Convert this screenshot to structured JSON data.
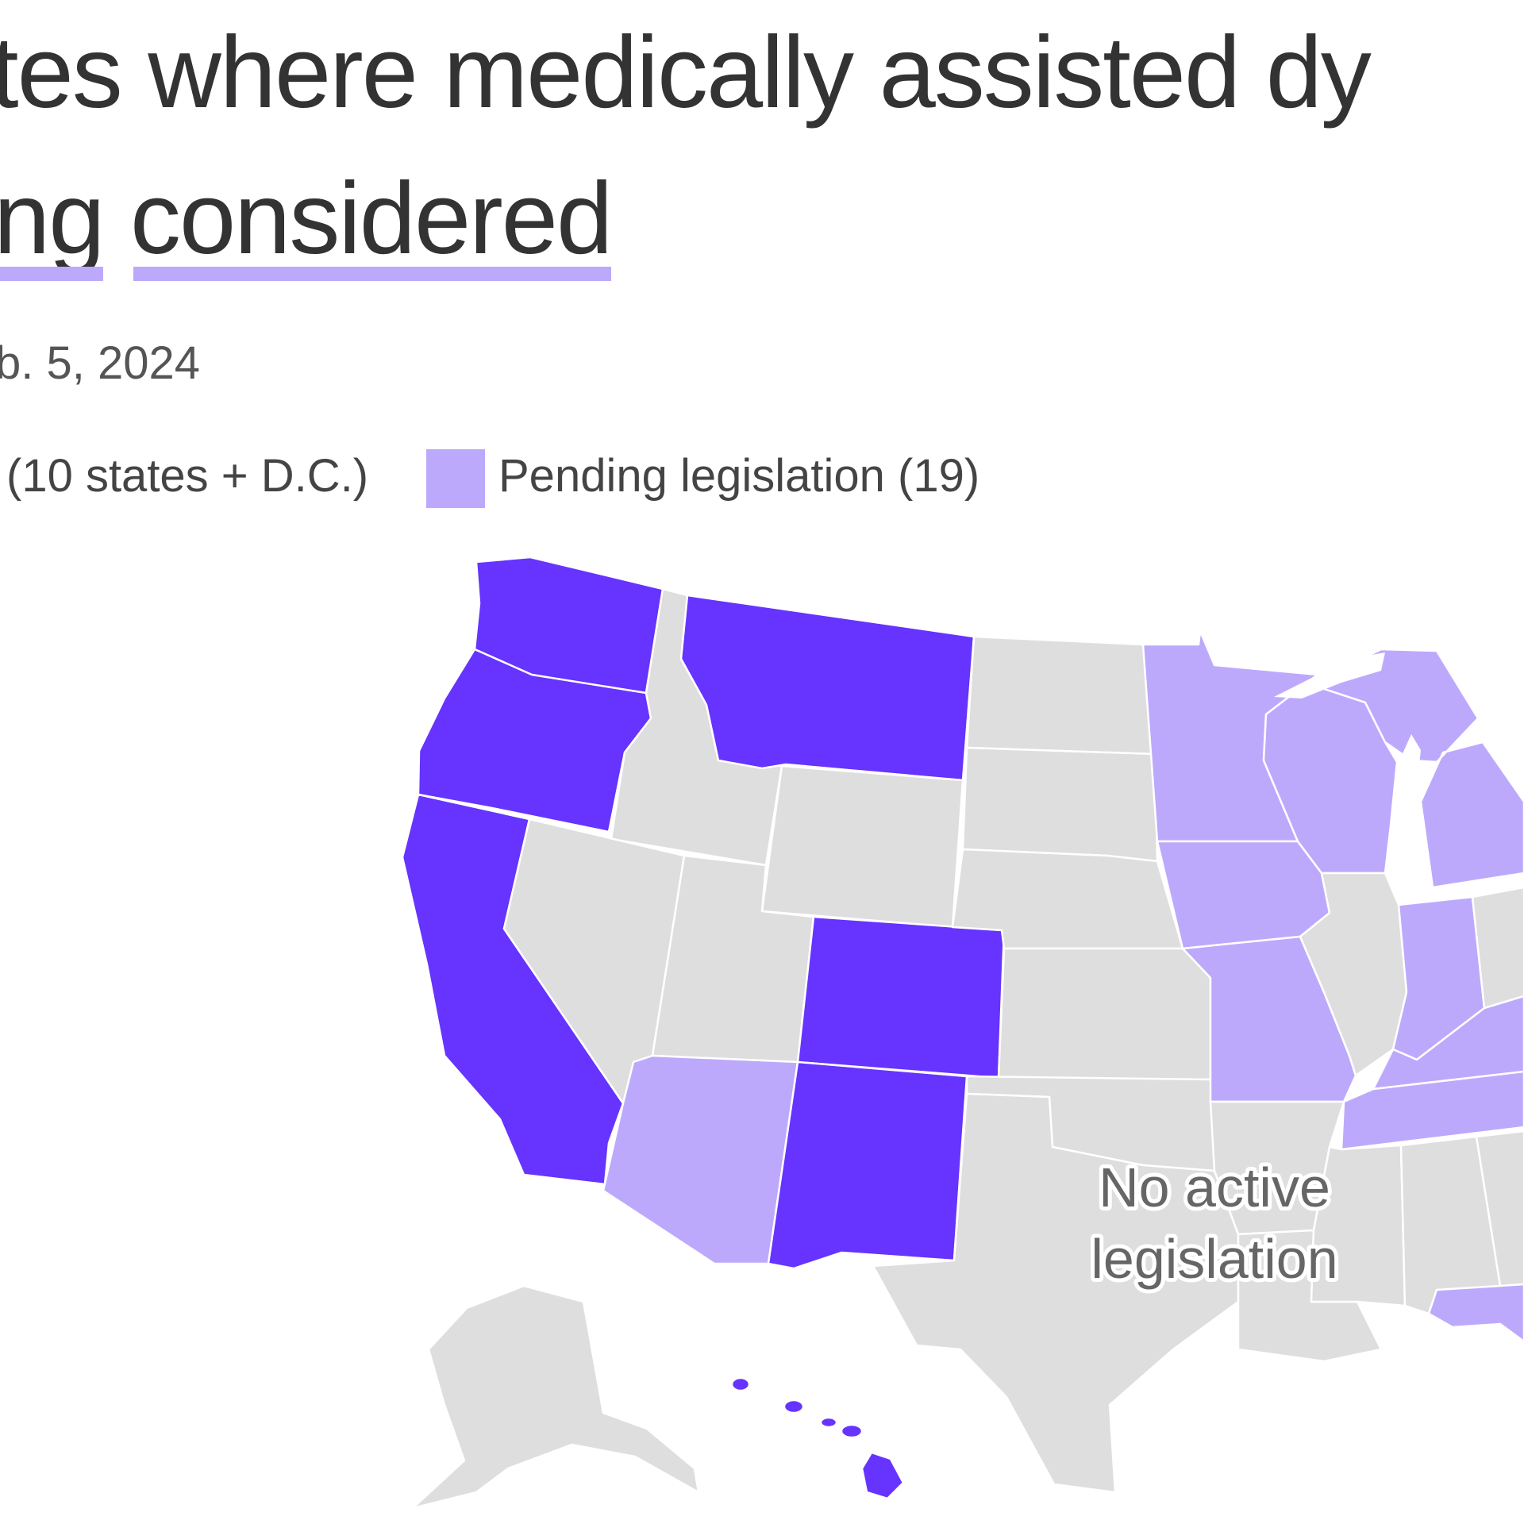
{
  "title": {
    "line1": "tes where medically assisted dy",
    "line2_prefix": "ng",
    "line2_word": "considered"
  },
  "subtitle": "b. 5, 2024",
  "colors": {
    "legal": "#6633ff",
    "pending": "#bda9fc",
    "none": "#dedede",
    "border": "#ffffff",
    "text": "#333333"
  },
  "legend": [
    {
      "label": "(10 states + D.C.)",
      "status": "legal"
    },
    {
      "label": "Pending legislation (19)",
      "status": "pending"
    }
  ],
  "map_label": {
    "line1": "No active",
    "line2": "legislation"
  },
  "states": [
    {
      "name": "Washington",
      "status": "legal"
    },
    {
      "name": "Oregon",
      "status": "legal"
    },
    {
      "name": "California",
      "status": "legal"
    },
    {
      "name": "Montana",
      "status": "legal"
    },
    {
      "name": "Colorado",
      "status": "legal"
    },
    {
      "name": "New Mexico",
      "status": "legal"
    },
    {
      "name": "Hawaii",
      "status": "legal"
    },
    {
      "name": "Arizona",
      "status": "pending"
    },
    {
      "name": "Minnesota",
      "status": "pending"
    },
    {
      "name": "Iowa",
      "status": "pending"
    },
    {
      "name": "Missouri",
      "status": "pending"
    },
    {
      "name": "Wisconsin",
      "status": "pending"
    },
    {
      "name": "Michigan",
      "status": "pending"
    },
    {
      "name": "Indiana",
      "status": "pending"
    },
    {
      "name": "Kentucky",
      "status": "pending"
    },
    {
      "name": "Tennessee",
      "status": "pending"
    },
    {
      "name": "Florida",
      "status": "pending"
    },
    {
      "name": "Idaho",
      "status": "none"
    },
    {
      "name": "Nevada",
      "status": "none"
    },
    {
      "name": "Utah",
      "status": "none"
    },
    {
      "name": "Wyoming",
      "status": "none"
    },
    {
      "name": "North Dakota",
      "status": "none"
    },
    {
      "name": "South Dakota",
      "status": "none"
    },
    {
      "name": "Nebraska",
      "status": "none"
    },
    {
      "name": "Kansas",
      "status": "none"
    },
    {
      "name": "Oklahoma",
      "status": "none"
    },
    {
      "name": "Texas",
      "status": "none"
    },
    {
      "name": "Arkansas",
      "status": "none"
    },
    {
      "name": "Louisiana",
      "status": "none"
    },
    {
      "name": "Mississippi",
      "status": "none"
    },
    {
      "name": "Alabama",
      "status": "none"
    },
    {
      "name": "Georgia",
      "status": "none"
    },
    {
      "name": "Illinois",
      "status": "none"
    },
    {
      "name": "Ohio",
      "status": "none"
    },
    {
      "name": "Alaska",
      "status": "none"
    }
  ]
}
